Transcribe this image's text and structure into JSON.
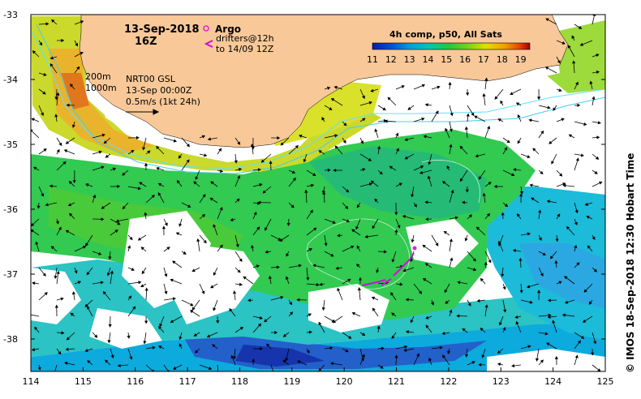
{
  "map": {
    "date_title": "13-Sep-2018",
    "hour_title": "16Z",
    "legend": {
      "argo_label": "Argo",
      "drifters_line1": "drifters@12h",
      "drifters_line2": "to 14/09 12Z",
      "argo_color": "#e020e0",
      "drifter_color": "#d010d0"
    },
    "depth_contours": {
      "contour_200": "200m",
      "contour_1000": "1000m"
    },
    "current_source": {
      "line1": "NRT00 GSL",
      "line2": "13-Sep 00:00Z",
      "line3": "0.5m/s (1kt 24h)"
    },
    "colorbar": {
      "title": "4h comp, p50, All Sats",
      "ticks": [
        "11",
        "12",
        "13",
        "14",
        "15",
        "16",
        "17",
        "18",
        "19"
      ],
      "range": [
        11,
        19.5
      ],
      "colors": [
        "#0a1e9c",
        "#0050d8",
        "#00a0e0",
        "#00c8b0",
        "#20c840",
        "#70d020",
        "#e0e000",
        "#f0a000",
        "#e04000",
        "#a00000"
      ]
    },
    "x_ticks": [
      "114",
      "115",
      "116",
      "117",
      "118",
      "119",
      "120",
      "121",
      "122",
      "123",
      "124",
      "125"
    ],
    "y_ticks": [
      "-33",
      "-34",
      "-35",
      "-36",
      "-37",
      "-38"
    ],
    "lon_range": [
      114,
      125
    ],
    "lat_range": [
      -38.5,
      -33
    ],
    "land_color": "#f8c898",
    "credit": "© IMOS 18-Sep-2018 12:30 Hobart Time"
  }
}
